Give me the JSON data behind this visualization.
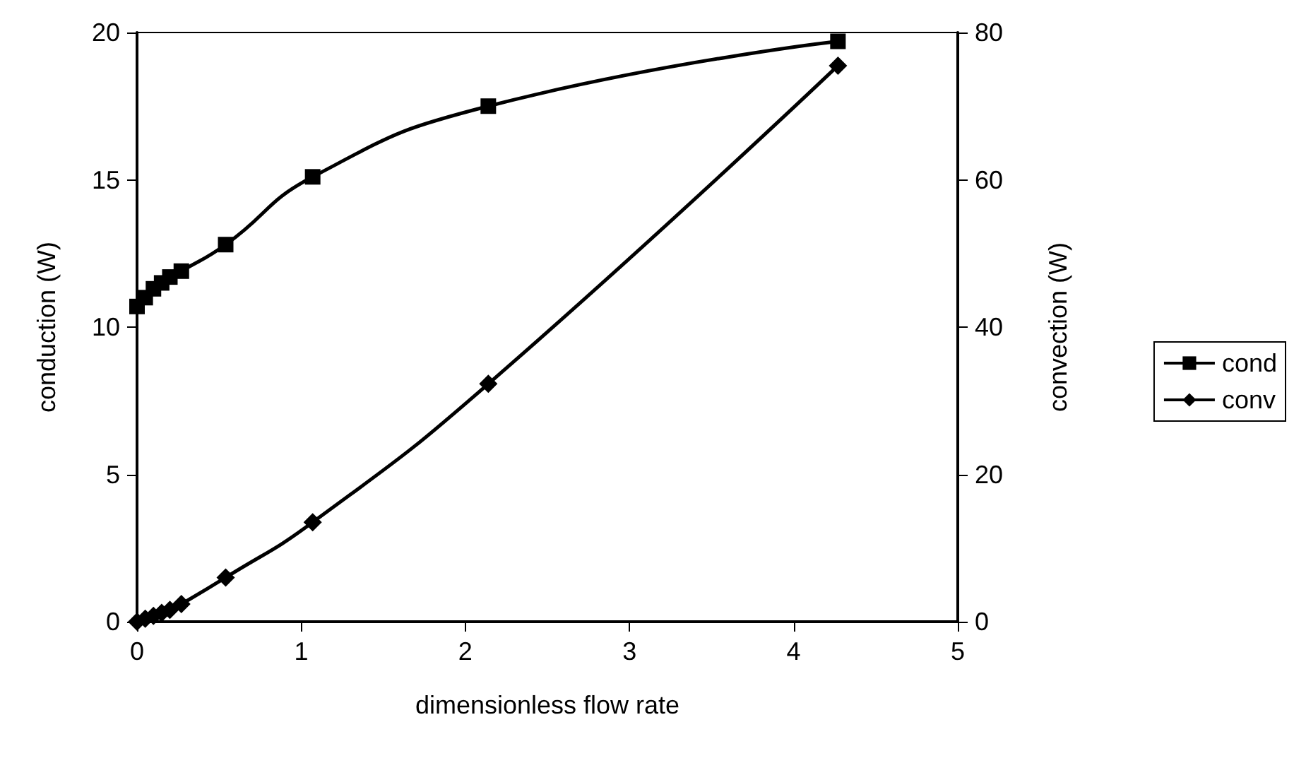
{
  "chart_data": {
    "type": "line",
    "xlabel": "dimensionless flow rate",
    "ylabel": "conduction (W)",
    "y2label": "convection (W)",
    "xlim": [
      0,
      5
    ],
    "xticks": [
      0,
      1,
      2,
      3,
      4,
      5
    ],
    "ylim": [
      0,
      20
    ],
    "yticks": [
      0,
      5,
      10,
      15,
      20
    ],
    "y2lim": [
      0,
      80
    ],
    "y2ticks": [
      0,
      20,
      40,
      60,
      80
    ],
    "grid": false,
    "legend": "right",
    "series": [
      {
        "name": "cond",
        "color": "#000000",
        "marker": "square",
        "x": [
          0,
          0.05,
          0.1,
          0.15,
          0.2,
          0.27,
          0.54,
          1.07,
          2.14,
          4.27
        ],
        "values": [
          10.7,
          11.0,
          11.3,
          11.5,
          11.7,
          11.9,
          12.8,
          15.1,
          17.5,
          19.7
        ]
      },
      {
        "name": "conv",
        "color": "#000000",
        "marker": "diamond",
        "axis": "y2",
        "x": [
          0,
          0.05,
          0.1,
          0.15,
          0.2,
          0.27,
          0.54,
          1.07,
          2.14,
          4.27
        ],
        "values": [
          0,
          0.4,
          0.8,
          1.2,
          1.6,
          2.4,
          6,
          13.5,
          32.3,
          75.5
        ]
      }
    ]
  }
}
